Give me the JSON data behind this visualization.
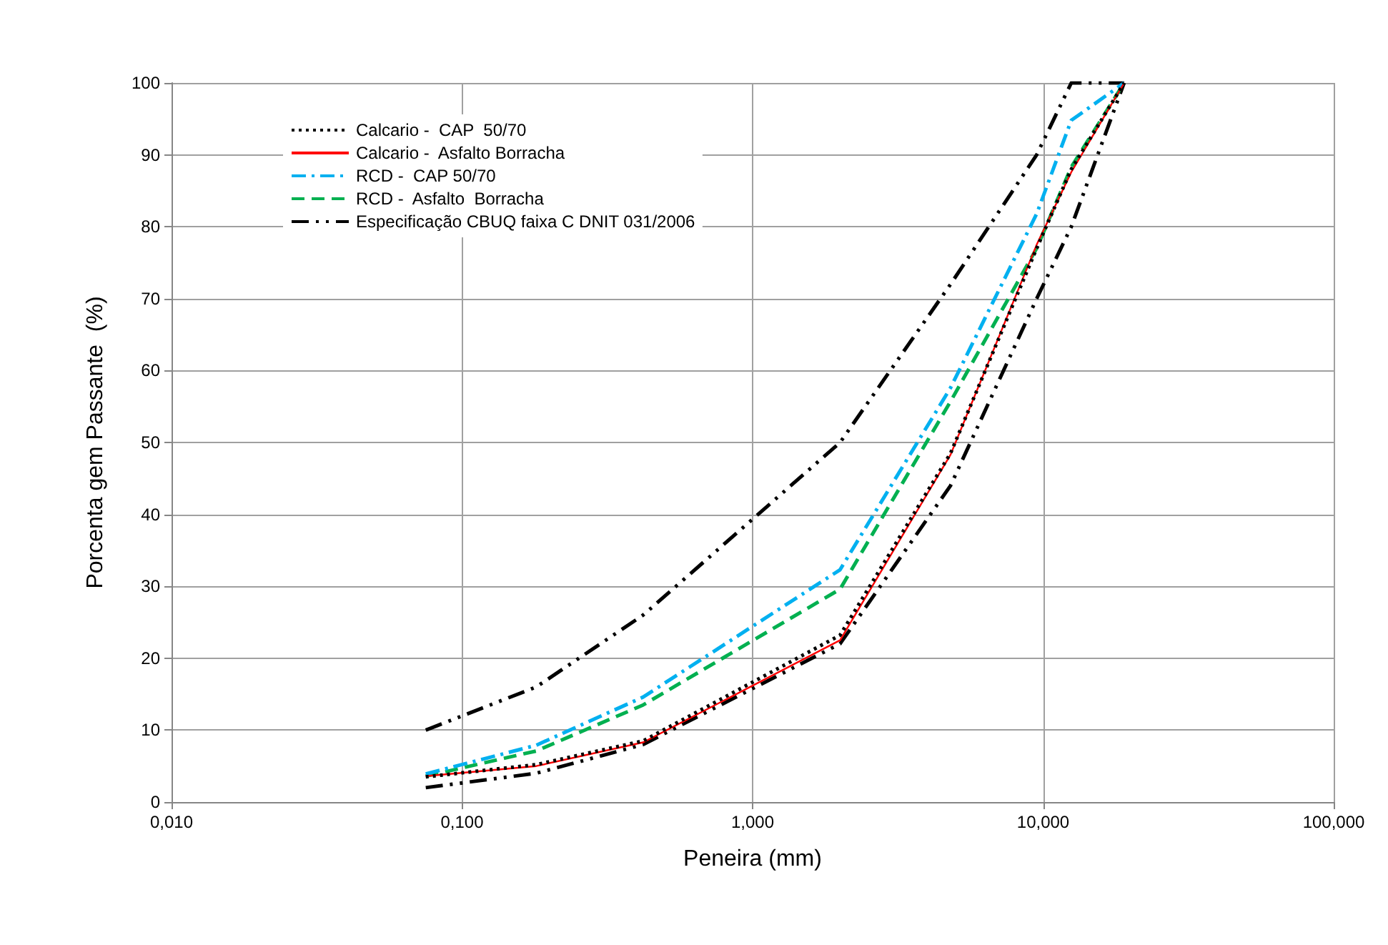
{
  "chart_data": {
    "type": "line",
    "xlabel": "Peneira (mm)",
    "ylabel": "Porcenta gem Passante  (%)",
    "x": [
      0.075,
      0.18,
      0.42,
      2.0,
      4.8,
      9.5,
      12.5,
      19.0
    ],
    "series": [
      {
        "name": "Calcario -  CAP  50/70",
        "color": "#000000",
        "line_style": "dotted",
        "values": [
          3.5,
          5.2,
          8.5,
          23.2,
          48.5,
          77,
          88,
          100
        ]
      },
      {
        "name": "Calcario -  Asfalto Borracha",
        "color": "#ff0000",
        "line_style": "solid",
        "values": [
          3.6,
          5.0,
          8.3,
          22.5,
          48.3,
          77.5,
          87.6,
          100
        ]
      },
      {
        "name": "RCD -  CAP 50/70",
        "color": "#00b0f0",
        "line_style": "dashdot",
        "values": [
          3.9,
          7.9,
          14.6,
          32.3,
          57.6,
          81.8,
          94.8,
          100
        ]
      },
      {
        "name": "RCD -  Asfalto  Borracha",
        "color": "#00b050",
        "line_style": "dashed",
        "values": [
          3.6,
          7.1,
          13.5,
          29.6,
          55.7,
          77,
          88.3,
          100
        ]
      },
      {
        "name": "Especificação CBUQ faixa C DNIT 031/2006",
        "color": "#000000",
        "line_style": "dashdotdot",
        "values": [
          10,
          16,
          26,
          50,
          72,
          90,
          100,
          100
        ]
      },
      {
        "color": "#000000",
        "line_style": "dashdotdot",
        "values": [
          2,
          4,
          8,
          22,
          44,
          70,
          80,
          100
        ]
      }
    ],
    "log": "x",
    "xlim": [
      0.01,
      100
    ],
    "xticks": [
      {
        "value": 0.01,
        "label": "0,010"
      },
      {
        "value": 0.1,
        "label": "0,100"
      },
      {
        "value": 1,
        "label": "1,000"
      },
      {
        "value": 10,
        "label": "10,000"
      },
      {
        "value": 100,
        "label": "100,000"
      }
    ],
    "ylim": [
      0,
      100
    ],
    "yticks": [
      0,
      10,
      20,
      30,
      40,
      50,
      60,
      70,
      80,
      90,
      100
    ],
    "grid": true,
    "legend": "top left",
    "marker": "none"
  }
}
